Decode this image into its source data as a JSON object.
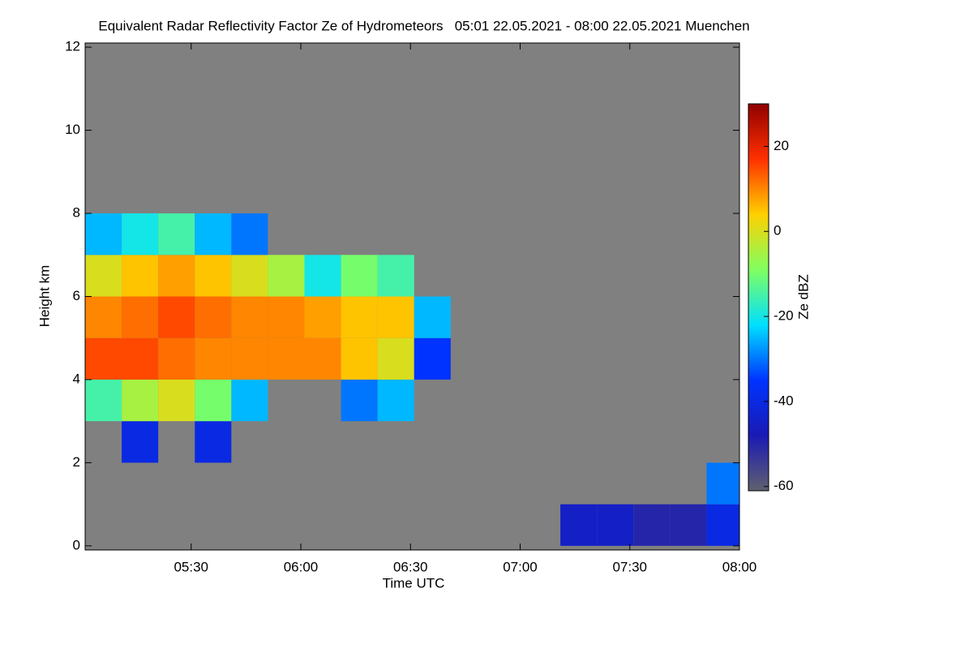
{
  "chart_data": {
    "type": "heatmap",
    "title": "Equivalent Radar Reflectivity Factor Ze of Hydrometeors   05:01 22.05.2021 - 08:00 22.05.2021 Muenchen",
    "x_label": "Time UTC",
    "y_label": "Height km",
    "colorbar_label": "Ze dBZ",
    "x": [
      306,
      316,
      326,
      336,
      346,
      356,
      366,
      376,
      386,
      396,
      406,
      416,
      426,
      436,
      446,
      456,
      466,
      476
    ],
    "y": [
      0.5,
      1.5,
      2.5,
      3.5,
      4.5,
      5.5,
      6.5,
      7.5
    ],
    "z": [
      [
        null,
        null,
        null,
        null,
        null,
        null,
        null,
        null,
        null,
        null,
        null,
        null,
        null,
        -45,
        -45,
        -50,
        -50,
        -40
      ],
      [
        null,
        null,
        null,
        null,
        null,
        null,
        null,
        null,
        null,
        null,
        null,
        null,
        null,
        null,
        null,
        null,
        null,
        -30
      ],
      [
        null,
        -40,
        null,
        -40,
        null,
        null,
        null,
        null,
        null,
        null,
        null,
        null,
        null,
        null,
        null,
        null,
        null,
        null
      ],
      [
        -15,
        -5,
        0,
        -10,
        -25,
        null,
        null,
        -30,
        -25,
        null,
        null,
        null,
        null,
        null,
        null,
        null,
        null,
        null
      ],
      [
        15,
        15,
        12,
        10,
        10,
        10,
        10,
        5,
        0,
        -35,
        null,
        null,
        null,
        null,
        null,
        null,
        null,
        null
      ],
      [
        10,
        12,
        15,
        12,
        10,
        10,
        8,
        5,
        5,
        -25,
        null,
        null,
        null,
        null,
        null,
        null,
        null,
        null
      ],
      [
        0,
        5,
        8,
        5,
        0,
        -5,
        -20,
        -10,
        -15,
        null,
        null,
        null,
        null,
        null,
        null,
        null,
        null,
        null
      ],
      [
        -25,
        -20,
        -15,
        -25,
        -30,
        null,
        null,
        null,
        null,
        null,
        null,
        null,
        null,
        null,
        null,
        null,
        null,
        null
      ]
    ],
    "xlim": [
      301,
      480
    ],
    "ylim": [
      -0.1,
      12.1
    ],
    "clim": [
      -61,
      30
    ],
    "xticks": [
      {
        "value": 330,
        "label": "05:30"
      },
      {
        "value": 360,
        "label": "06:00"
      },
      {
        "value": 390,
        "label": "06:30"
      },
      {
        "value": 420,
        "label": "07:00"
      },
      {
        "value": 450,
        "label": "07:30"
      },
      {
        "value": 480,
        "label": "08:00"
      }
    ],
    "yticks": [
      0,
      2,
      4,
      6,
      8,
      10,
      12
    ],
    "cticks": [
      -60,
      -40,
      -20,
      0,
      20
    ],
    "colors": [
      "#606070",
      "#1a1ab4",
      "#0033ff",
      "#00e0ff",
      "#80ff60",
      "#ffd000",
      "#ff3000",
      "#900000"
    ],
    "background": "#808080"
  }
}
